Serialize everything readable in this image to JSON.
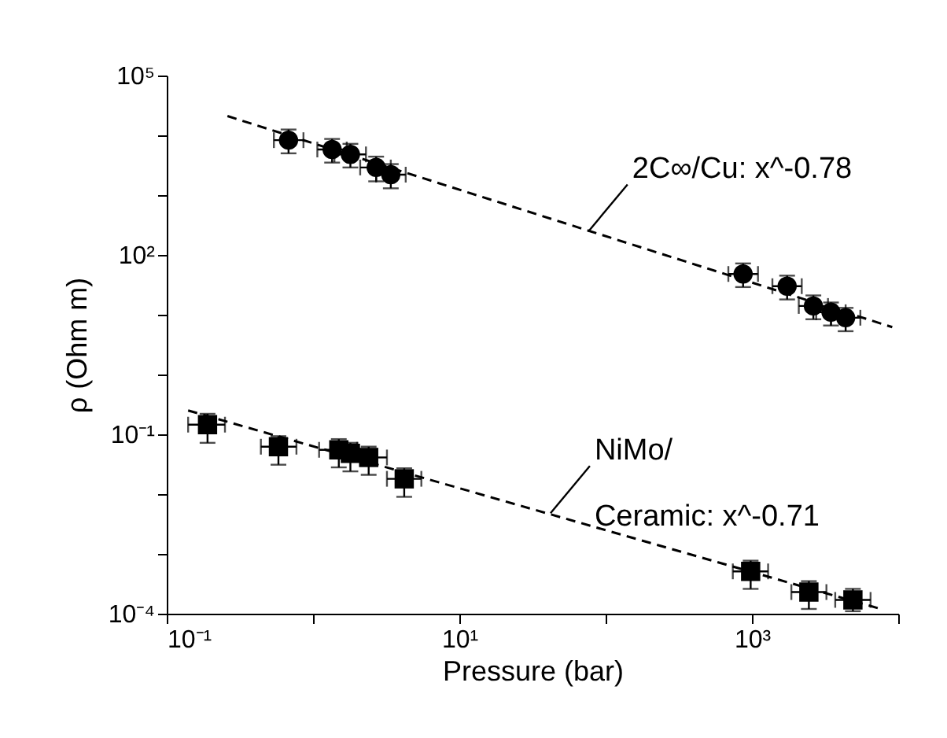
{
  "chart_data": {
    "type": "scatter",
    "xlabel": "Pressure (bar)",
    "ylabel": "ρ (Ohm m)",
    "log": "xy",
    "grid": false,
    "xlim": [
      0.1,
      10000
    ],
    "ylim": [
      0.0001,
      100000
    ],
    "xticks": [
      {
        "value": 0.1,
        "label": "10⁻¹"
      },
      {
        "value": 1,
        "label": null
      },
      {
        "value": 10,
        "label": "10¹"
      },
      {
        "value": 100,
        "label": null
      },
      {
        "value": 1000,
        "label": "10³"
      },
      {
        "value": 10000,
        "label": null
      }
    ],
    "yticks": [
      {
        "value": 0.0001,
        "label": "10⁻⁴"
      },
      {
        "value": 0.001,
        "label": null
      },
      {
        "value": 0.01,
        "label": null
      },
      {
        "value": 0.1,
        "label": "10⁻¹"
      },
      {
        "value": 1,
        "label": null
      },
      {
        "value": 10,
        "label": null
      },
      {
        "value": 100,
        "label": "10²"
      },
      {
        "value": 1000,
        "label": null
      },
      {
        "value": 10000,
        "label": null
      },
      {
        "value": 100000,
        "label": "10⁵"
      }
    ],
    "series": [
      {
        "type": "scatter",
        "marker": "circle",
        "color": "#000000",
        "x": [
          0.68,
          1.35,
          1.8,
          2.7,
          3.4,
          870,
          1740,
          2630,
          3470,
          4370
        ],
        "values": [
          8300,
          5800,
          4800,
          2900,
          2200,
          48,
          30,
          14,
          11,
          8.9
        ],
        "errors": [
          [
            5000,
            12500
          ],
          [
            3500,
            8700
          ],
          [
            2900,
            7200
          ],
          [
            1700,
            4400
          ],
          [
            1300,
            3300
          ],
          [
            29,
            72
          ],
          [
            18,
            45
          ],
          [
            8.4,
            21
          ],
          [
            6.6,
            16
          ],
          [
            5.3,
            13
          ]
        ],
        "xerrors": [
          [
            0.54,
            0.86
          ],
          [
            1.07,
            1.7
          ],
          [
            1.4,
            2.3
          ],
          [
            2.1,
            3.4
          ],
          [
            2.7,
            4.3
          ],
          [
            690,
            1100
          ],
          [
            1380,
            2190
          ],
          [
            2090,
            3310
          ],
          [
            2750,
            4370
          ],
          [
            3470,
            5510
          ]
        ]
      },
      {
        "type": "scatter",
        "marker": "square",
        "color": "#000000",
        "x": [
          0.19,
          0.58,
          1.5,
          1.8,
          2.4,
          4.2,
          980,
          2450,
          4900
        ],
        "values": [
          0.145,
          0.062,
          0.055,
          0.048,
          0.041,
          0.018,
          0.00051,
          0.00023,
          0.00017
        ],
        "errors": [
          [
            0.072,
            0.22
          ],
          [
            0.031,
            0.093
          ],
          [
            0.028,
            0.083
          ],
          [
            0.024,
            0.072
          ],
          [
            0.021,
            0.062
          ],
          [
            0.009,
            0.027
          ],
          [
            0.00026,
            0.00077
          ],
          [
            0.00012,
            0.00035
          ],
          [
            0.00011,
            0.00026
          ]
        ],
        "xerrors": [
          [
            0.14,
            0.25
          ],
          [
            0.44,
            0.77
          ],
          [
            1.1,
            2.0
          ],
          null,
          [
            2.4,
            3.2
          ],
          [
            3.2,
            5.5
          ],
          [
            740,
            1290
          ],
          [
            1860,
            3230
          ],
          [
            3710,
            6470
          ]
        ]
      },
      {
        "type": "line",
        "line_style": "dashed",
        "marker": "none",
        "color": "#000000",
        "x": [
          0.26,
          9100
        ],
        "values": [
          21000,
          6.2
        ]
      },
      {
        "type": "line",
        "line_style": "dashed",
        "marker": "none",
        "color": "#000000",
        "x": [
          0.14,
          7600
        ],
        "values": [
          0.25,
          0.00012
        ]
      }
    ],
    "annotations": [
      {
        "text": "2C∞/Cu: x^-0.78",
        "x": 76,
        "y": 245
      },
      {
        "text": "NiMo/\nCeramic: x^-0.71",
        "x": 42,
        "y": 0.0048
      }
    ]
  }
}
